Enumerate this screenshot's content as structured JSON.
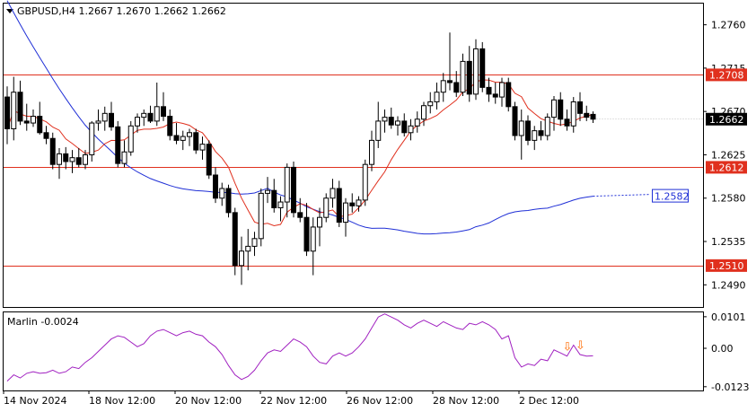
{
  "header": {
    "title": "GBPUSD,H4  1.2667 1.2670 1.2662 1.2662"
  },
  "chart_data": [
    {
      "type": "candlestick",
      "symbol": "GBPUSD",
      "timeframe": "H4",
      "ohlc_readout": {
        "open": 1.2667,
        "high": 1.267,
        "low": 1.2662,
        "close": 1.2662
      },
      "ylim": [
        1.2467,
        1.2782
      ],
      "y_ticks": [
        "1.2760",
        "1.2715",
        "1.2670",
        "1.2625",
        "1.2580",
        "1.2535",
        "1.2490"
      ],
      "x_ticks": [
        "14 Nov 2024",
        "18 Nov 12:00",
        "20 Nov 12:00",
        "22 Nov 12:00",
        "26 Nov 12:00",
        "28 Nov 12:00",
        "2 Dec 12:00"
      ],
      "horizontal_levels": [
        {
          "value": 1.2708,
          "label": "1.2708",
          "color": "#e0301e"
        },
        {
          "value": 1.2612,
          "label": "1.2612",
          "color": "#e0301e"
        },
        {
          "value": 1.251,
          "label": "1.2510",
          "color": "#e0301e"
        }
      ],
      "current_price_label": "1.2662",
      "blue_ma_end_label": "1.2582",
      "colors": {
        "bull": "#ffffff",
        "bear": "#000000",
        "fast_ma": "#e0301e",
        "slow_ma": "#1f2fd6",
        "levels": "#e0301e"
      },
      "candles": [
        [
          1.2685,
          1.2696,
          1.2636,
          1.2652
        ],
        [
          1.2652,
          1.2706,
          1.264,
          1.269
        ],
        [
          1.269,
          1.2702,
          1.2656,
          1.266
        ],
        [
          1.266,
          1.2678,
          1.265,
          1.2658
        ],
        [
          1.2658,
          1.2672,
          1.2654,
          1.2665
        ],
        [
          1.2665,
          1.268,
          1.2646,
          1.2648
        ],
        [
          1.2648,
          1.2655,
          1.2636,
          1.2642
        ],
        [
          1.2642,
          1.2648,
          1.261,
          1.2615
        ],
        [
          1.2615,
          1.2632,
          1.26,
          1.2626
        ],
        [
          1.2626,
          1.2633,
          1.261,
          1.2618
        ],
        [
          1.2618,
          1.263,
          1.2606,
          1.2622
        ],
        [
          1.2622,
          1.2632,
          1.2612,
          1.2615
        ],
        [
          1.2615,
          1.263,
          1.261,
          1.2625
        ],
        [
          1.2625,
          1.266,
          1.2618,
          1.2658
        ],
        [
          1.2658,
          1.2672,
          1.265,
          1.266
        ],
        [
          1.266,
          1.2675,
          1.265,
          1.2668
        ],
        [
          1.2668,
          1.268,
          1.265,
          1.2654
        ],
        [
          1.2654,
          1.266,
          1.2612,
          1.2616
        ],
        [
          1.2616,
          1.264,
          1.2612,
          1.2628
        ],
        [
          1.2628,
          1.266,
          1.2624,
          1.2655
        ],
        [
          1.2655,
          1.2668,
          1.2648,
          1.2664
        ],
        [
          1.2664,
          1.2672,
          1.2655,
          1.2668
        ],
        [
          1.2668,
          1.2676,
          1.2658,
          1.266
        ],
        [
          1.266,
          1.27,
          1.2655,
          1.2675
        ],
        [
          1.2675,
          1.269,
          1.266,
          1.2665
        ],
        [
          1.2665,
          1.2672,
          1.264,
          1.2645
        ],
        [
          1.2645,
          1.2658,
          1.2636,
          1.264
        ],
        [
          1.264,
          1.265,
          1.263,
          1.2644
        ],
        [
          1.2644,
          1.2652,
          1.2634,
          1.2648
        ],
        [
          1.2648,
          1.2652,
          1.2626,
          1.263
        ],
        [
          1.263,
          1.2644,
          1.262,
          1.2636
        ],
        [
          1.2636,
          1.264,
          1.26,
          1.2604
        ],
        [
          1.2604,
          1.2612,
          1.2575,
          1.258
        ],
        [
          1.258,
          1.2596,
          1.2572,
          1.259
        ],
        [
          1.259,
          1.2594,
          1.256,
          1.2565
        ],
        [
          1.2565,
          1.257,
          1.25,
          1.251
        ],
        [
          1.251,
          1.254,
          1.249,
          1.2525
        ],
        [
          1.2525,
          1.2548,
          1.2505,
          1.253
        ],
        [
          1.253,
          1.2545,
          1.252,
          1.2538
        ],
        [
          1.2538,
          1.259,
          1.253,
          1.2585
        ],
        [
          1.2585,
          1.2602,
          1.2575,
          1.2588
        ],
        [
          1.2588,
          1.26,
          1.2565,
          1.257
        ],
        [
          1.257,
          1.2582,
          1.2556,
          1.2576
        ],
        [
          1.2576,
          1.2616,
          1.256,
          1.2612
        ],
        [
          1.2612,
          1.2618,
          1.256,
          1.2565
        ],
        [
          1.2565,
          1.258,
          1.2555,
          1.256
        ],
        [
          1.256,
          1.2575,
          1.252,
          1.2525
        ],
        [
          1.2525,
          1.256,
          1.25,
          1.255
        ],
        [
          1.255,
          1.257,
          1.253,
          1.256
        ],
        [
          1.256,
          1.2585,
          1.2555,
          1.258
        ],
        [
          1.258,
          1.26,
          1.257,
          1.259
        ],
        [
          1.259,
          1.2598,
          1.255,
          1.2555
        ],
        [
          1.2555,
          1.258,
          1.254,
          1.2575
        ],
        [
          1.2575,
          1.2585,
          1.2565,
          1.2572
        ],
        [
          1.2572,
          1.2582,
          1.2566,
          1.2578
        ],
        [
          1.2578,
          1.262,
          1.2572,
          1.2615
        ],
        [
          1.2615,
          1.265,
          1.2608,
          1.264
        ],
        [
          1.264,
          1.268,
          1.2632,
          1.266
        ],
        [
          1.266,
          1.2672,
          1.2648,
          1.2664
        ],
        [
          1.2664,
          1.2674,
          1.2652,
          1.2656
        ],
        [
          1.2656,
          1.2665,
          1.2645,
          1.266
        ],
        [
          1.266,
          1.2668,
          1.2644,
          1.2648
        ],
        [
          1.2648,
          1.2662,
          1.264,
          1.2655
        ],
        [
          1.2655,
          1.267,
          1.2648,
          1.2662
        ],
        [
          1.2662,
          1.268,
          1.2655,
          1.2676
        ],
        [
          1.2676,
          1.269,
          1.2668,
          1.268
        ],
        [
          1.268,
          1.27,
          1.2672,
          1.269
        ],
        [
          1.269,
          1.271,
          1.268,
          1.2702
        ],
        [
          1.2702,
          1.2752,
          1.2692,
          1.27
        ],
        [
          1.27,
          1.2712,
          1.2685,
          1.269
        ],
        [
          1.269,
          1.273,
          1.2686,
          1.2722
        ],
        [
          1.2722,
          1.2738,
          1.268,
          1.2688
        ],
        [
          1.2688,
          1.2745,
          1.2682,
          1.2735
        ],
        [
          1.2735,
          1.2742,
          1.269,
          1.2695
        ],
        [
          1.2695,
          1.2705,
          1.268,
          1.2688
        ],
        [
          1.2688,
          1.27,
          1.2678,
          1.2685
        ],
        [
          1.2685,
          1.2705,
          1.2675,
          1.27
        ],
        [
          1.27,
          1.2705,
          1.267,
          1.2675
        ],
        [
          1.2675,
          1.268,
          1.264,
          1.2645
        ],
        [
          1.2645,
          1.2672,
          1.262,
          1.266
        ],
        [
          1.266,
          1.2666,
          1.2635,
          1.264
        ],
        [
          1.264,
          1.2655,
          1.263,
          1.265
        ],
        [
          1.265,
          1.266,
          1.264,
          1.2645
        ],
        [
          1.2645,
          1.2668,
          1.264,
          1.2664
        ],
        [
          1.2664,
          1.2686,
          1.265,
          1.2682
        ],
        [
          1.2682,
          1.269,
          1.2655,
          1.2662
        ],
        [
          1.2662,
          1.2672,
          1.265,
          1.2655
        ],
        [
          1.2655,
          1.2685,
          1.2648,
          1.268
        ],
        [
          1.268,
          1.269,
          1.266,
          1.2668
        ],
        [
          1.2668,
          1.2676,
          1.266,
          1.2664
        ],
        [
          1.2667,
          1.267,
          1.2658,
          1.2662
        ]
      ]
    },
    {
      "type": "line",
      "name": "Marlin",
      "indicator_readout": "Marlin -0.0024",
      "ylim": [
        -0.0135,
        0.0115
      ],
      "y_ticks": [
        "0.0101",
        "0.00",
        "-0.0123"
      ],
      "zero_line": 0,
      "color": "#a020c0",
      "values": [
        -0.0105,
        -0.0085,
        -0.0095,
        -0.008,
        -0.0075,
        -0.008,
        -0.0078,
        -0.007,
        -0.008,
        -0.0075,
        -0.006,
        -0.0065,
        -0.0045,
        -0.003,
        -0.001,
        0.001,
        0.003,
        0.004,
        0.0035,
        0.002,
        0.0005,
        0.0015,
        0.004,
        0.0055,
        0.006,
        0.005,
        0.004,
        0.005,
        0.0055,
        0.0045,
        0.004,
        0.002,
        0.0005,
        -0.002,
        -0.0055,
        -0.0085,
        -0.01,
        -0.009,
        -0.007,
        -0.004,
        -0.0015,
        -0.0005,
        -0.001,
        0.001,
        0.003,
        0.002,
        0.0005,
        -0.0025,
        -0.0045,
        -0.005,
        -0.0025,
        -0.0015,
        -0.0025,
        -0.0015,
        0.0005,
        0.003,
        0.0065,
        0.01,
        0.011,
        0.01,
        0.009,
        0.0075,
        0.0065,
        0.008,
        0.009,
        0.008,
        0.007,
        0.0085,
        0.0075,
        0.0065,
        0.006,
        0.008,
        0.0075,
        0.0085,
        0.0075,
        0.006,
        0.003,
        0.004,
        -0.003,
        -0.006,
        -0.005,
        -0.0055,
        -0.0035,
        -0.004,
        -0.0005,
        -0.0015,
        -0.0025,
        0.001,
        -0.002,
        -0.0025,
        -0.0024
      ],
      "arrows": [
        {
          "index": 86,
          "symbol": "⇩",
          "color": "#ff6a00"
        },
        {
          "index": 88,
          "symbol": "⇩",
          "color": "#ff6a00"
        }
      ],
      "x_ticks": [
        "14 Nov 2024",
        "18 Nov 12:00",
        "20 Nov 12:00",
        "22 Nov 12:00",
        "26 Nov 12:00",
        "28 Nov 12:00",
        "2 Dec 12:00"
      ]
    }
  ]
}
